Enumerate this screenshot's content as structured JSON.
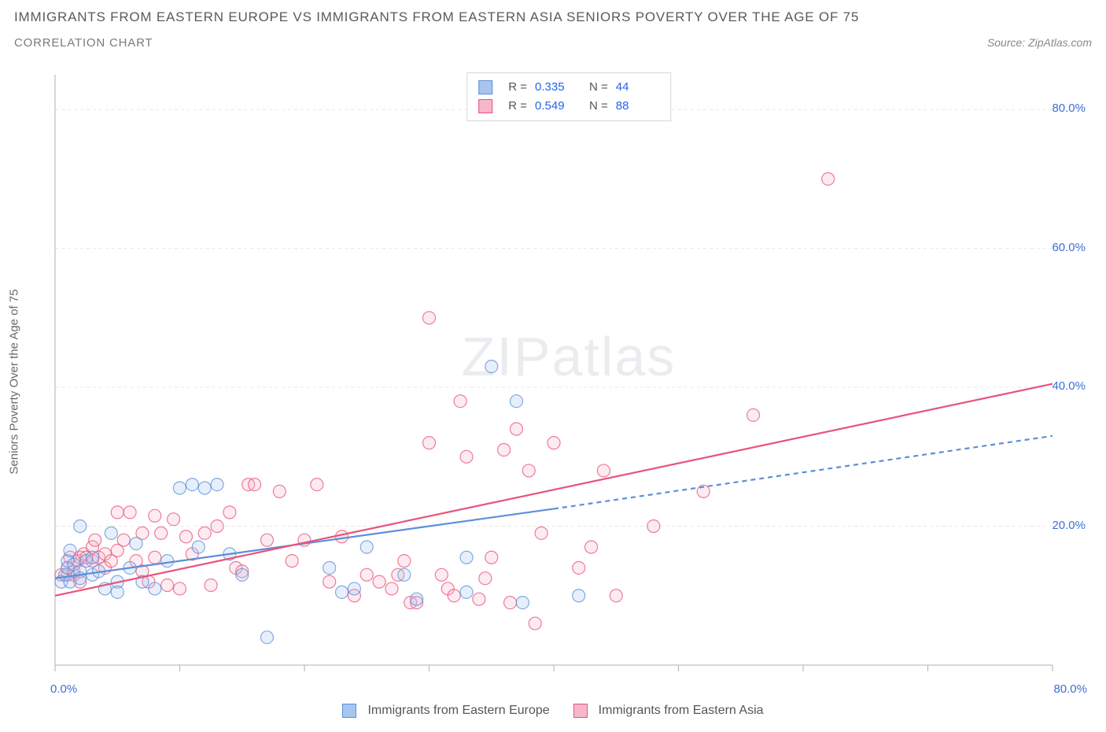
{
  "title": "IMMIGRANTS FROM EASTERN EUROPE VS IMMIGRANTS FROM EASTERN ASIA SENIORS POVERTY OVER THE AGE OF 75",
  "subtitle": "CORRELATION CHART",
  "source_prefix": "Source: ",
  "source_name": "ZipAtlas.com",
  "y_axis_label": "Seniors Poverty Over the Age of 75",
  "watermark_zip": "ZIP",
  "watermark_atlas": "atlas",
  "chart": {
    "type": "scatter",
    "xlim": [
      0,
      80
    ],
    "ylim": [
      0,
      85
    ],
    "x_ticks": [
      0,
      10,
      20,
      30,
      40,
      50,
      60,
      70,
      80
    ],
    "y_gridlines": [
      20,
      40,
      60,
      80
    ],
    "x_origin_label": "0.0%",
    "x_max_label": "80.0%",
    "y_tick_labels": [
      "20.0%",
      "40.0%",
      "60.0%",
      "80.0%"
    ],
    "background_color": "#ffffff",
    "grid_color": "#e8e8e8",
    "grid_dash": "4 4",
    "axis_color": "#cccccc",
    "tick_color": "#bbbbbb",
    "axis_label_color": "#3b6fd8",
    "marker_radius": 8,
    "marker_stroke_width": 1.2,
    "marker_fill_opacity": 0.28,
    "trend_line_width": 2.2,
    "series": [
      {
        "name": "Immigrants from Eastern Europe",
        "short_key": "europe",
        "color_fill": "#a8c5f0",
        "color_stroke": "#5b8fd9",
        "R_label": "R =",
        "R_value": "0.335",
        "N_label": "N =",
        "N_value": "44",
        "trend": {
          "x1": 0,
          "y1": 12.5,
          "x2": 40,
          "y2": 22.5,
          "x2_ext": 80,
          "y2_ext": 33,
          "dash_ext": "6 5"
        },
        "points": [
          [
            0.5,
            12
          ],
          [
            0.8,
            13
          ],
          [
            1,
            14
          ],
          [
            1,
            15
          ],
          [
            1.2,
            16.5
          ],
          [
            1.2,
            12
          ],
          [
            1.5,
            14.5
          ],
          [
            2,
            13.5
          ],
          [
            2,
            12.5
          ],
          [
            2,
            20
          ],
          [
            2.5,
            15
          ],
          [
            3,
            13
          ],
          [
            3,
            15.5
          ],
          [
            3.5,
            13.5
          ],
          [
            4,
            11
          ],
          [
            4.5,
            19
          ],
          [
            5,
            12
          ],
          [
            5,
            10.5
          ],
          [
            6,
            14
          ],
          [
            6.5,
            17.5
          ],
          [
            7,
            12
          ],
          [
            8,
            11
          ],
          [
            9,
            15
          ],
          [
            10,
            25.5
          ],
          [
            11,
            26
          ],
          [
            11.5,
            17
          ],
          [
            12,
            25.5
          ],
          [
            13,
            26
          ],
          [
            14,
            16
          ],
          [
            15,
            13
          ],
          [
            17,
            4
          ],
          [
            22,
            14
          ],
          [
            23,
            10.5
          ],
          [
            24,
            11
          ],
          [
            25,
            17
          ],
          [
            28,
            13
          ],
          [
            29,
            9.5
          ],
          [
            33,
            10.5
          ],
          [
            33,
            15.5
          ],
          [
            35,
            43
          ],
          [
            37,
            38
          ],
          [
            37.5,
            9
          ],
          [
            42,
            10
          ]
        ]
      },
      {
        "name": "Immigrants from Eastern Asia",
        "short_key": "asia",
        "color_fill": "#f6b8c8",
        "color_stroke": "#e8537a",
        "R_label": "R =",
        "R_value": "0.549",
        "N_label": "N =",
        "N_value": "88",
        "trend": {
          "x1": 0,
          "y1": 10,
          "x2": 80,
          "y2": 40.5,
          "x2_ext": 80,
          "y2_ext": 40.5,
          "dash_ext": ""
        },
        "points": [
          [
            0.5,
            13
          ],
          [
            1,
            13
          ],
          [
            1,
            14
          ],
          [
            1.2,
            15.5
          ],
          [
            1.5,
            13
          ],
          [
            1.5,
            13.5
          ],
          [
            1.8,
            15
          ],
          [
            2,
            12
          ],
          [
            2,
            15.5
          ],
          [
            2.3,
            16
          ],
          [
            2.5,
            15.5
          ],
          [
            3,
            15
          ],
          [
            3,
            17
          ],
          [
            3.2,
            18
          ],
          [
            3.5,
            15.5
          ],
          [
            4,
            14
          ],
          [
            4,
            16
          ],
          [
            4.5,
            15
          ],
          [
            5,
            16.5
          ],
          [
            5,
            22
          ],
          [
            5.5,
            18
          ],
          [
            6,
            22
          ],
          [
            6.5,
            15
          ],
          [
            7,
            19
          ],
          [
            7,
            13.5
          ],
          [
            7.5,
            12
          ],
          [
            8,
            21.5
          ],
          [
            8,
            15.5
          ],
          [
            8.5,
            19
          ],
          [
            9,
            11.5
          ],
          [
            9.5,
            21
          ],
          [
            10,
            11
          ],
          [
            10.5,
            18.5
          ],
          [
            11,
            16
          ],
          [
            12,
            19
          ],
          [
            12.5,
            11.5
          ],
          [
            13,
            20
          ],
          [
            14,
            22
          ],
          [
            14.5,
            14
          ],
          [
            15,
            13.5
          ],
          [
            15.5,
            26
          ],
          [
            16,
            26
          ],
          [
            17,
            18
          ],
          [
            18,
            25
          ],
          [
            19,
            15
          ],
          [
            20,
            18
          ],
          [
            21,
            26
          ],
          [
            22,
            12
          ],
          [
            23,
            18.5
          ],
          [
            24,
            10
          ],
          [
            25,
            13
          ],
          [
            26,
            12
          ],
          [
            27,
            11
          ],
          [
            27.5,
            13
          ],
          [
            28,
            15
          ],
          [
            28.5,
            9
          ],
          [
            29,
            9
          ],
          [
            30,
            32
          ],
          [
            30,
            50
          ],
          [
            31,
            13
          ],
          [
            31.5,
            11
          ],
          [
            32,
            10
          ],
          [
            32.5,
            38
          ],
          [
            33,
            30
          ],
          [
            34,
            9.5
          ],
          [
            34.5,
            12.5
          ],
          [
            35,
            15.5
          ],
          [
            36,
            31
          ],
          [
            36.5,
            9
          ],
          [
            37,
            34
          ],
          [
            38,
            28
          ],
          [
            38.5,
            6
          ],
          [
            39,
            19
          ],
          [
            40,
            32
          ],
          [
            42,
            14
          ],
          [
            43,
            17
          ],
          [
            44,
            28
          ],
          [
            45,
            10
          ],
          [
            48,
            20
          ],
          [
            52,
            25
          ],
          [
            56,
            36
          ],
          [
            62,
            70
          ]
        ]
      }
    ]
  },
  "legend_bottom": {
    "items": [
      {
        "label": "Immigrants from Eastern Europe",
        "fill": "#a8c5f0",
        "stroke": "#5b8fd9"
      },
      {
        "label": "Immigrants from Eastern Asia",
        "fill": "#f6b8c8",
        "stroke": "#e8537a"
      }
    ]
  }
}
